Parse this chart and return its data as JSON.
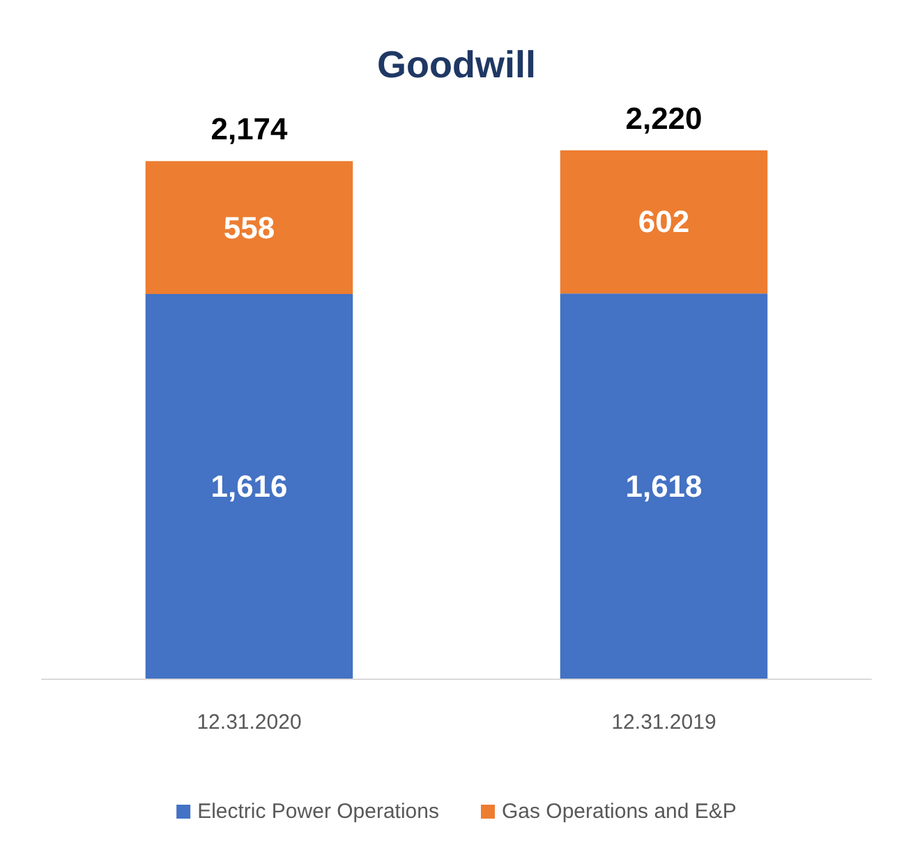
{
  "chart_data": {
    "type": "bar",
    "title": "Goodwill",
    "categories": [
      "12.31.2020",
      "12.31.2019"
    ],
    "series": [
      {
        "name": "Electric Power Operations",
        "color": "#4472c4",
        "values": [
          1616,
          1618
        ],
        "value_labels": [
          "1,616",
          "1,618"
        ]
      },
      {
        "name": "Gas Operations and E&P",
        "color": "#ed7d31",
        "values": [
          558,
          602
        ],
        "value_labels": [
          "558",
          "602"
        ]
      }
    ],
    "stacked": true,
    "totals": [
      "2,174",
      "2,220"
    ],
    "legend": "bottom"
  }
}
